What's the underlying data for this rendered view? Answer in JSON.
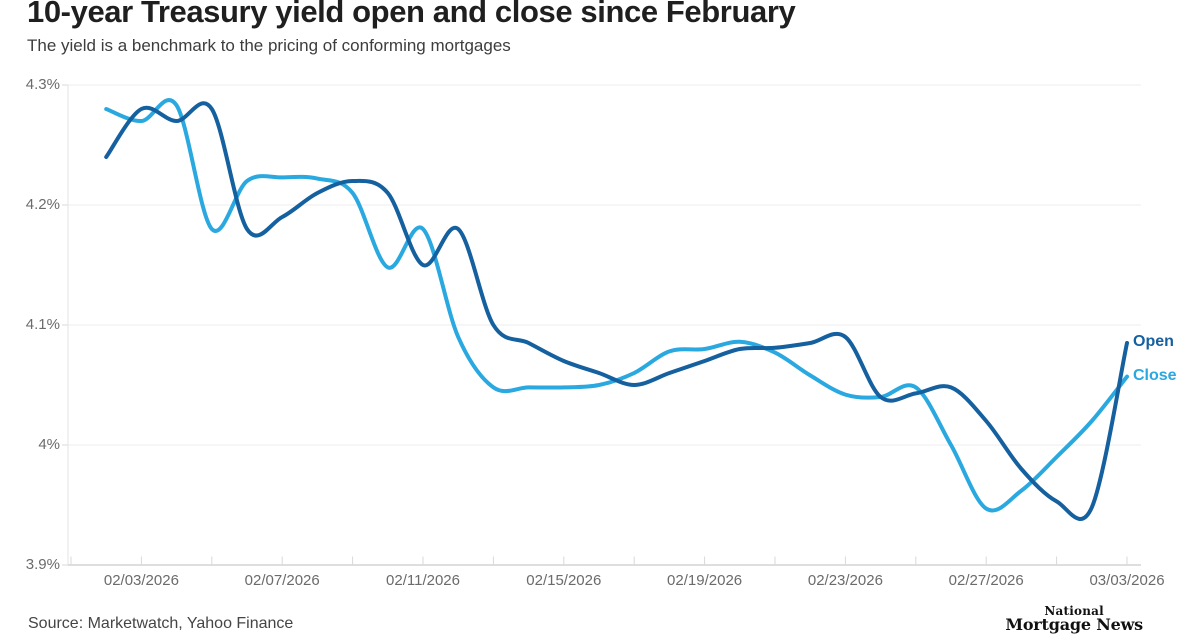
{
  "header": {
    "title": "10-year Treasury yield open and close since February",
    "subtitle": "The yield is a benchmark to the pricing of conforming mortgages"
  },
  "footer": {
    "source": "Source: Marketwatch, Yahoo Finance",
    "logo_line1": "National",
    "logo_line2": "Mortgage News"
  },
  "chart_data": {
    "type": "line",
    "title": "10-year Treasury yield open and close since February",
    "subtitle": "The yield is a benchmark to the pricing of conforming mortgages",
    "unit": "percent",
    "grid": "horizontal",
    "legend_position": "line-end-right",
    "ylim": [
      3.9,
      4.3
    ],
    "x_dates": [
      "02/02/2026",
      "02/03/2026",
      "02/04/2026",
      "02/05/2026",
      "02/06/2026",
      "02/07/2026",
      "02/08/2026",
      "02/09/2026",
      "02/10/2026",
      "02/11/2026",
      "02/12/2026",
      "02/13/2026",
      "02/14/2026",
      "02/15/2026",
      "02/16/2026",
      "02/17/2026",
      "02/18/2026",
      "02/19/2026",
      "02/20/2026",
      "02/21/2026",
      "02/22/2026",
      "02/23/2026",
      "02/24/2026",
      "02/25/2026",
      "02/26/2026",
      "02/27/2026",
      "02/28/2026",
      "03/01/2026",
      "03/02/2026",
      "03/03/2026"
    ],
    "series": [
      {
        "name": "Open",
        "color": "#15609f",
        "values": [
          4.24,
          4.28,
          4.27,
          4.28,
          4.18,
          4.19,
          4.21,
          4.22,
          4.21,
          4.15,
          4.18,
          4.1,
          4.085,
          4.07,
          4.06,
          4.05,
          4.06,
          4.07,
          4.08,
          4.081,
          4.085,
          4.09,
          4.04,
          4.043,
          4.048,
          4.02,
          3.98,
          3.953,
          3.948,
          4.085
        ]
      },
      {
        "name": "Close",
        "color": "#2aa8e0",
        "values": [
          4.28,
          4.27,
          4.283,
          4.18,
          4.22,
          4.223,
          4.222,
          4.21,
          4.148,
          4.18,
          4.09,
          4.048,
          4.048,
          4.048,
          4.05,
          4.06,
          4.078,
          4.08,
          4.086,
          4.077,
          4.058,
          4.042,
          4.04,
          4.048,
          4.0,
          3.947,
          3.962,
          3.99,
          4.02,
          4.057
        ]
      }
    ],
    "yticks": [
      {
        "label": "4.3%",
        "value": 4.3
      },
      {
        "label": "4.2%",
        "value": 4.2
      },
      {
        "label": "4.1%",
        "value": 4.1
      },
      {
        "label": "4%",
        "value": 4.0
      },
      {
        "label": "3.9%",
        "value": 3.9
      }
    ],
    "xtick_labels": [
      "02/03/2026",
      "02/07/2026",
      "02/11/2026",
      "02/15/2026",
      "02/19/2026",
      "02/23/2026",
      "02/27/2026",
      "03/03/2026"
    ],
    "colors": {
      "grid": "#ececec",
      "axis": "#c9c9c9",
      "tick": "#d9d9d9",
      "axis_text": "#6b6b6b"
    }
  }
}
